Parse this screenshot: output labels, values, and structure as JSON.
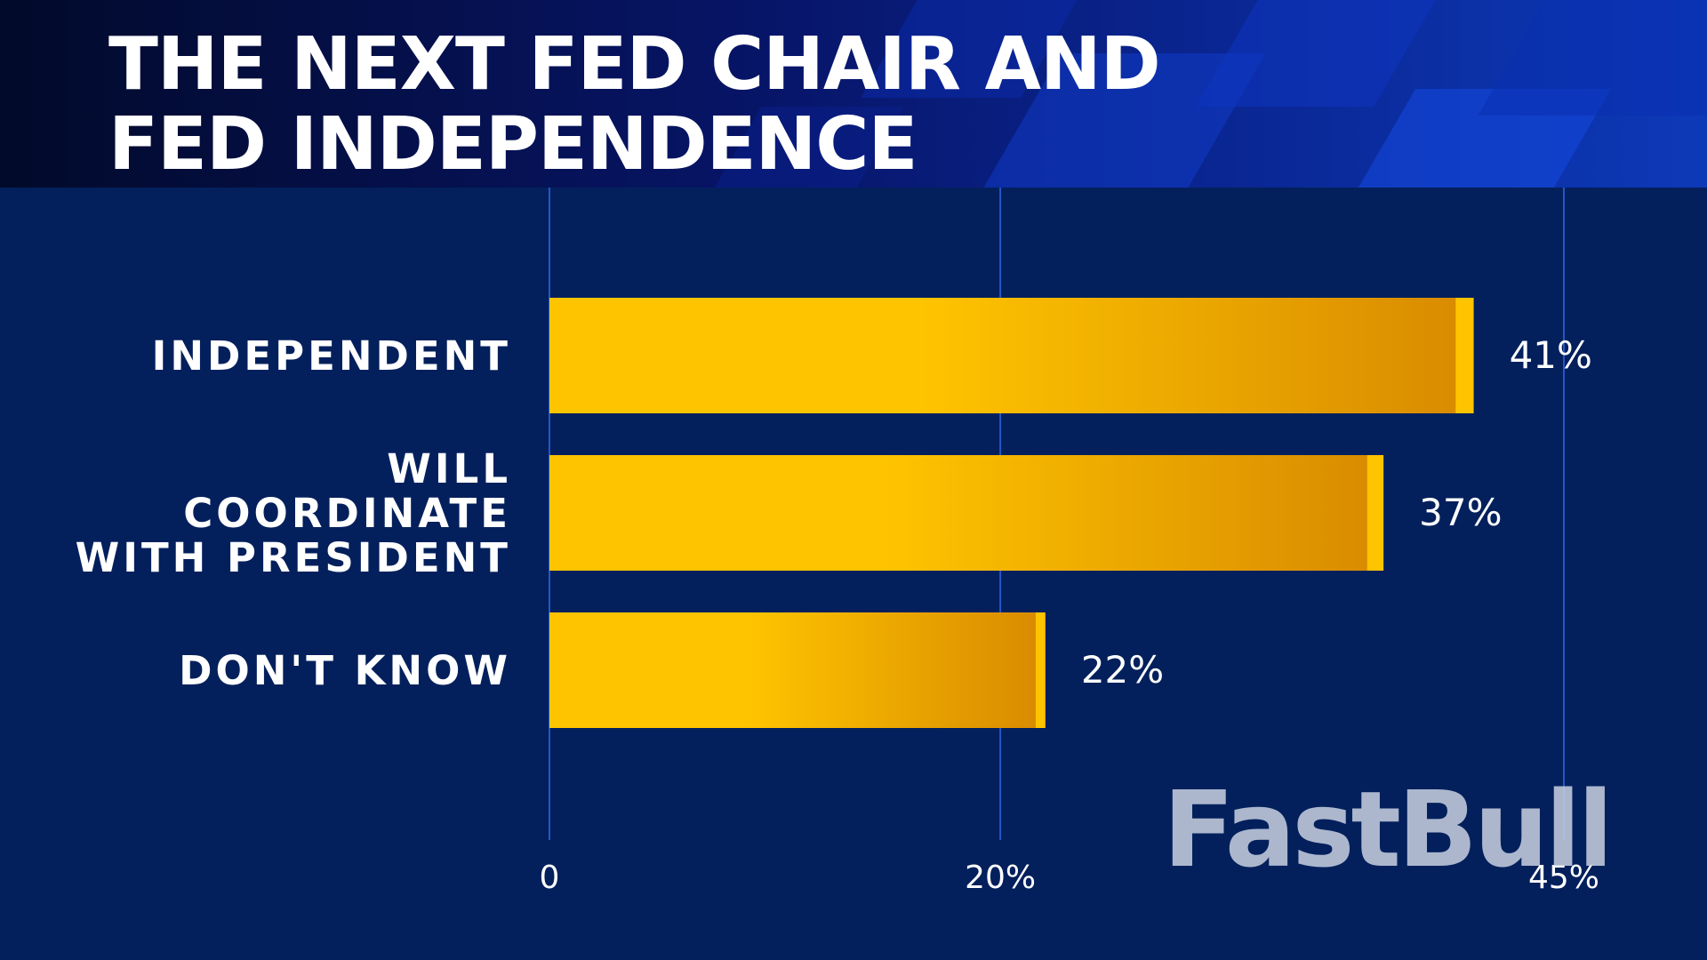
{
  "title": "THE NEXT FED CHAIR AND\nFED INDEPENDENCE",
  "watermark": "FastBull",
  "colors": {
    "background": "#03205c",
    "bar_light": "#ffc400",
    "bar_dark": "#d98c00",
    "gridline": "#2456c8",
    "text": "#ffffff"
  },
  "chart_data": {
    "type": "bar",
    "orientation": "horizontal",
    "categories": [
      "INDEPENDENT",
      "WILL\nCOORDINATE\nWITH PRESIDENT",
      "DON'T KNOW"
    ],
    "values": [
      41,
      37,
      22
    ],
    "value_labels": [
      "41%",
      "37%",
      "22%"
    ],
    "x_ticks": [
      0,
      20,
      45
    ],
    "x_tick_labels": [
      "0",
      "20%",
      "45%"
    ],
    "xlim": [
      0,
      45
    ],
    "grid": true,
    "legend": "none"
  }
}
